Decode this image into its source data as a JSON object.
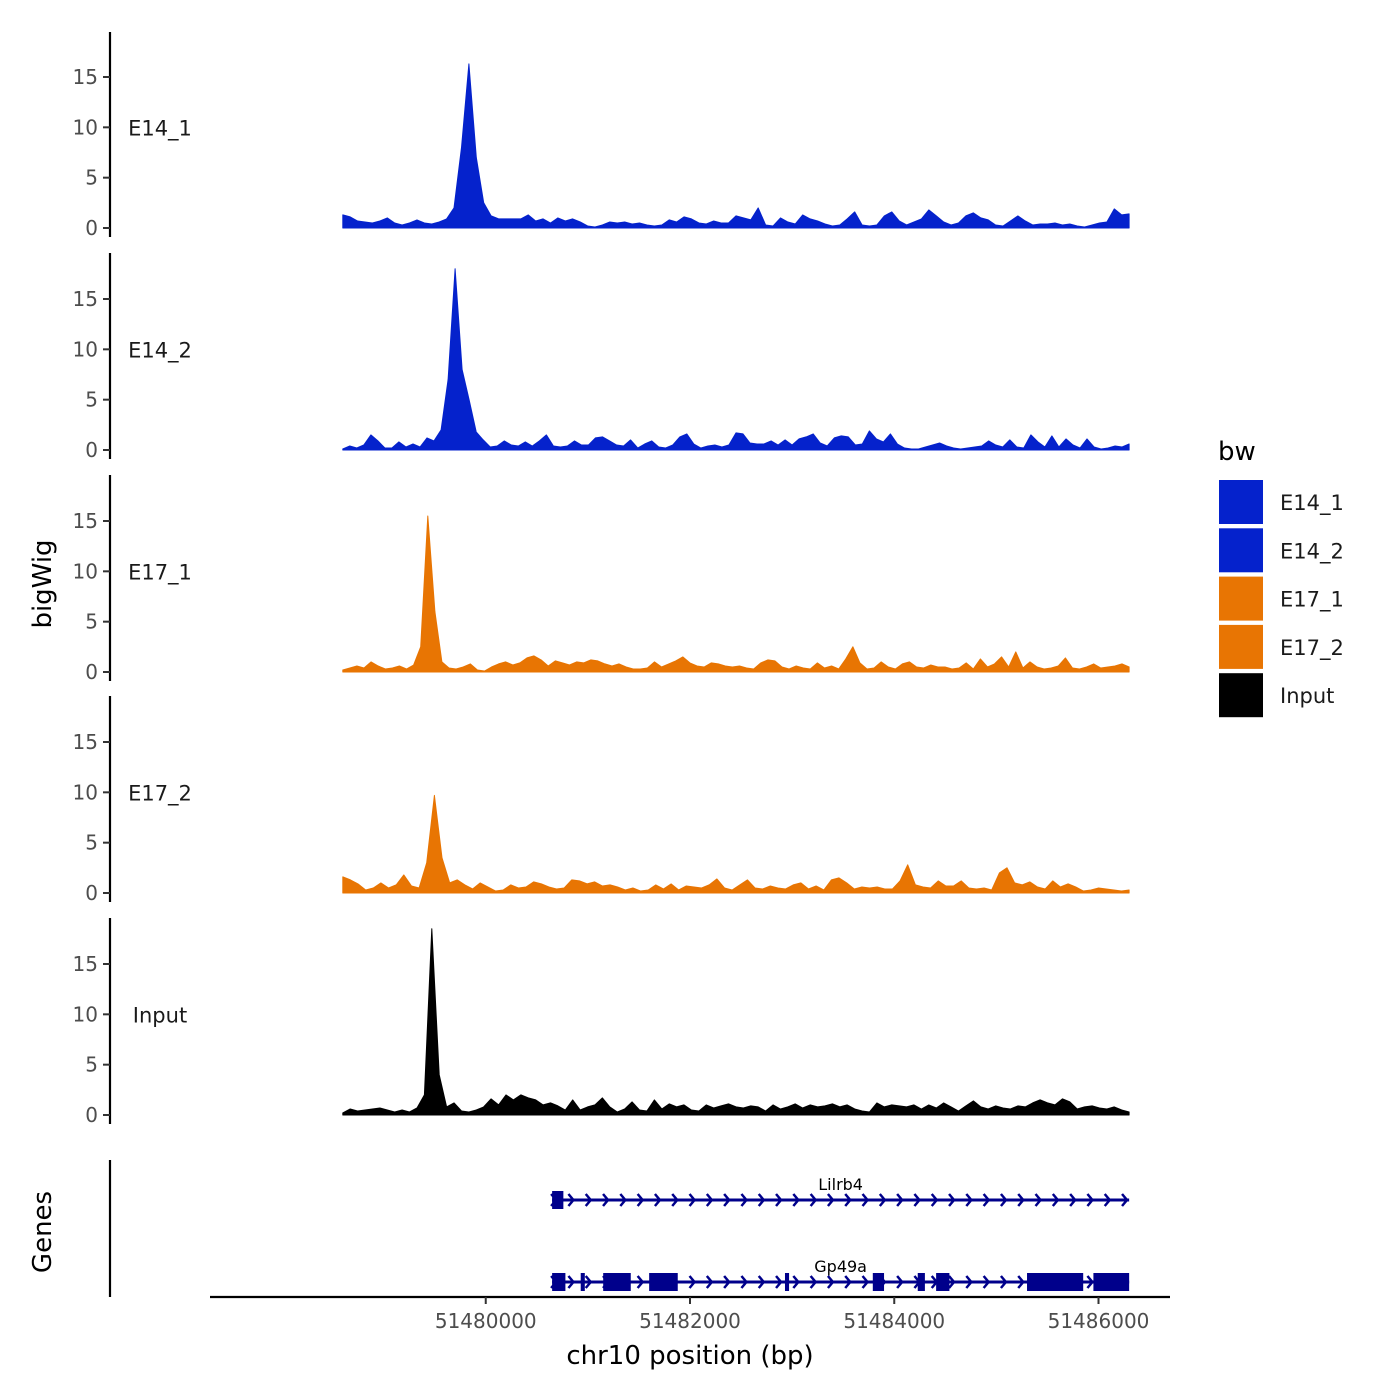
{
  "chart_data": {
    "type": "area",
    "xlabel": "chr10 position (bp)",
    "ylabel": "bigWig",
    "genes_label": "Genes",
    "xlim": [
      51477300,
      51486700
    ],
    "x_range": [
      51478600,
      51486300
    ],
    "xticks": [
      51480000,
      51482000,
      51484000,
      51486000
    ],
    "xtick_labels": [
      "51480000",
      "51482000",
      "51484000",
      "51486000"
    ],
    "ylim": [
      0,
      19.7
    ],
    "yticks": [
      0,
      5,
      10,
      15
    ],
    "ytick_labels": [
      "0",
      "5",
      "10",
      "15"
    ],
    "legend_title": "bw",
    "series": [
      {
        "name": "E14_1",
        "color": "#0522CC",
        "values": [
          1.3,
          1.1,
          0.7,
          0.6,
          0.5,
          0.7,
          1.0,
          0.5,
          0.3,
          0.5,
          0.8,
          0.5,
          0.4,
          0.6,
          0.9,
          2.0,
          8.0,
          16.3,
          7.0,
          2.5,
          1.2,
          0.9,
          0.9,
          0.9,
          0.9,
          1.3,
          0.7,
          0.9,
          0.5,
          1.0,
          0.7,
          0.9,
          0.6,
          0.2,
          0.1,
          0.3,
          0.6,
          0.5,
          0.6,
          0.4,
          0.5,
          0.3,
          0.2,
          0.3,
          0.8,
          0.6,
          1.1,
          0.9,
          0.5,
          0.4,
          0.7,
          0.5,
          0.5,
          1.2,
          1.0,
          0.8,
          2.0,
          0.3,
          0.2,
          1.0,
          0.6,
          0.4,
          1.3,
          0.9,
          0.7,
          0.4,
          0.2,
          0.3,
          0.9,
          1.6,
          0.3,
          0.2,
          0.3,
          1.2,
          1.6,
          0.7,
          0.3,
          0.6,
          0.9,
          1.8,
          1.2,
          0.6,
          0.3,
          0.5,
          1.2,
          1.5,
          1.0,
          0.8,
          0.3,
          0.2,
          0.7,
          1.2,
          0.7,
          0.3,
          0.4,
          0.4,
          0.5,
          0.3,
          0.4,
          0.2,
          0.1,
          0.3,
          0.5,
          0.6,
          1.9,
          1.3,
          1.4
        ]
      },
      {
        "name": "E14_2",
        "color": "#0522CC",
        "values": [
          0.1,
          0.4,
          0.2,
          0.5,
          1.5,
          0.9,
          0.2,
          0.2,
          0.8,
          0.3,
          0.6,
          0.3,
          1.2,
          0.9,
          2.0,
          7.0,
          18.0,
          8.0,
          5.0,
          1.8,
          1.0,
          0.3,
          0.4,
          0.9,
          0.5,
          0.4,
          0.8,
          0.4,
          0.9,
          1.5,
          0.4,
          0.3,
          0.4,
          0.9,
          0.5,
          0.5,
          1.2,
          1.3,
          0.9,
          0.5,
          0.4,
          1.0,
          0.2,
          0.6,
          0.9,
          0.3,
          0.2,
          0.5,
          1.3,
          1.6,
          0.6,
          0.2,
          0.4,
          0.5,
          0.3,
          0.5,
          1.7,
          1.6,
          0.7,
          0.6,
          0.6,
          0.9,
          0.5,
          1.0,
          0.5,
          1.1,
          1.3,
          1.6,
          0.7,
          0.4,
          1.2,
          1.4,
          1.3,
          0.5,
          0.6,
          1.9,
          1.1,
          0.8,
          1.6,
          0.6,
          0.2,
          0.1,
          0.1,
          0.3,
          0.5,
          0.7,
          0.4,
          0.2,
          0.1,
          0.2,
          0.3,
          0.4,
          0.9,
          0.5,
          0.3,
          1.0,
          0.3,
          0.2,
          1.5,
          0.8,
          0.3,
          1.4,
          0.3,
          1.1,
          0.5,
          0.2,
          1.1,
          0.3,
          0.1,
          0.2,
          0.4,
          0.3,
          0.6
        ]
      },
      {
        "name": "E17_1",
        "color": "#E87503",
        "values": [
          0.2,
          0.4,
          0.6,
          0.4,
          1.0,
          0.6,
          0.3,
          0.4,
          0.6,
          0.3,
          0.7,
          2.5,
          15.5,
          6.0,
          1.0,
          0.4,
          0.3,
          0.5,
          0.8,
          0.2,
          0.1,
          0.5,
          0.8,
          1.0,
          0.7,
          0.9,
          1.4,
          1.6,
          1.2,
          0.6,
          1.1,
          0.9,
          0.7,
          1.0,
          0.9,
          1.2,
          1.1,
          0.8,
          0.6,
          0.8,
          0.5,
          0.3,
          0.3,
          0.4,
          1.0,
          0.5,
          0.8,
          1.1,
          1.5,
          0.9,
          0.6,
          0.5,
          0.9,
          0.8,
          0.6,
          0.5,
          0.6,
          0.4,
          0.3,
          0.9,
          1.2,
          1.1,
          0.5,
          0.3,
          0.6,
          0.4,
          0.3,
          0.9,
          0.4,
          0.6,
          0.3,
          1.3,
          2.5,
          0.9,
          0.3,
          0.4,
          1.0,
          0.5,
          0.3,
          0.8,
          1.0,
          0.5,
          0.4,
          0.7,
          0.5,
          0.5,
          0.3,
          0.4,
          0.9,
          0.3,
          1.3,
          0.5,
          0.8,
          1.5,
          0.5,
          2.0,
          0.4,
          1.0,
          0.5,
          0.3,
          0.4,
          0.6,
          1.4,
          0.4,
          0.3,
          0.5,
          0.8,
          0.4,
          0.5,
          0.6,
          0.8,
          0.5
        ]
      },
      {
        "name": "E17_2",
        "color": "#E87503",
        "values": [
          1.6,
          1.3,
          0.9,
          0.3,
          0.5,
          1.0,
          0.5,
          0.8,
          1.8,
          0.7,
          0.5,
          3.0,
          9.7,
          3.5,
          1.0,
          1.3,
          0.8,
          0.4,
          1.0,
          0.6,
          0.2,
          0.3,
          0.8,
          0.5,
          0.6,
          1.1,
          0.9,
          0.6,
          0.4,
          0.5,
          1.3,
          1.2,
          0.9,
          1.1,
          0.7,
          0.8,
          0.6,
          0.3,
          0.5,
          0.2,
          0.3,
          0.8,
          0.4,
          0.9,
          0.3,
          0.7,
          0.6,
          0.5,
          0.8,
          1.4,
          0.5,
          0.3,
          0.8,
          1.3,
          0.5,
          0.4,
          0.7,
          0.5,
          0.4,
          0.8,
          1.0,
          0.4,
          0.7,
          0.3,
          1.3,
          1.5,
          1.0,
          0.4,
          0.6,
          0.5,
          0.6,
          0.4,
          0.4,
          1.2,
          2.8,
          0.8,
          0.6,
          0.5,
          1.2,
          0.7,
          0.7,
          1.2,
          0.5,
          0.4,
          0.5,
          0.3,
          2.0,
          2.5,
          1.0,
          0.8,
          1.1,
          0.6,
          0.4,
          1.2,
          0.6,
          0.9,
          0.6,
          0.2,
          0.3,
          0.5,
          0.4,
          0.3,
          0.2,
          0.3
        ]
      },
      {
        "name": "Input",
        "color": "#000000",
        "values": [
          0.2,
          0.6,
          0.4,
          0.5,
          0.6,
          0.7,
          0.5,
          0.3,
          0.5,
          0.3,
          0.7,
          2.0,
          18.5,
          4.0,
          0.8,
          1.2,
          0.4,
          0.3,
          0.5,
          0.8,
          1.6,
          1.0,
          2.0,
          1.5,
          2.0,
          1.7,
          1.5,
          1.0,
          1.2,
          0.9,
          0.5,
          1.5,
          0.5,
          0.8,
          1.0,
          1.7,
          0.8,
          0.3,
          0.6,
          1.3,
          0.5,
          0.4,
          1.5,
          0.6,
          1.1,
          0.8,
          1.0,
          0.5,
          0.4,
          1.0,
          0.7,
          0.9,
          1.1,
          0.8,
          0.7,
          0.9,
          0.8,
          0.4,
          1.0,
          0.6,
          0.8,
          1.1,
          0.7,
          1.0,
          0.8,
          0.9,
          1.1,
          0.8,
          1.0,
          0.6,
          0.4,
          0.3,
          1.2,
          0.8,
          1.0,
          0.9,
          0.8,
          1.0,
          0.6,
          1.0,
          0.7,
          1.2,
          0.8,
          0.4,
          0.9,
          1.4,
          0.8,
          0.6,
          0.9,
          0.7,
          0.6,
          0.9,
          0.8,
          1.2,
          1.5,
          1.2,
          1.0,
          1.6,
          1.3,
          0.6,
          0.8,
          0.9,
          0.7,
          0.6,
          0.8,
          0.5,
          0.3
        ]
      }
    ],
    "genes": [
      {
        "name": "Lilrb4",
        "start": 51480650,
        "end": 51486300,
        "strand": "+",
        "color": "#00008B",
        "exons": [
          [
            51480650,
            51480760
          ]
        ]
      },
      {
        "name": "Gp49a",
        "start": 51480650,
        "end": 51486300,
        "strand": "+",
        "color": "#00008B",
        "exons": [
          [
            51480650,
            51480780
          ],
          [
            51480930,
            51480970
          ],
          [
            51481150,
            51481420
          ],
          [
            51481600,
            51481880
          ],
          [
            51482930,
            51482970
          ],
          [
            51483790,
            51483900
          ],
          [
            51484230,
            51484300
          ],
          [
            51484410,
            51484540
          ],
          [
            51485300,
            51485850
          ],
          [
            51485950,
            51486300
          ]
        ]
      }
    ]
  }
}
